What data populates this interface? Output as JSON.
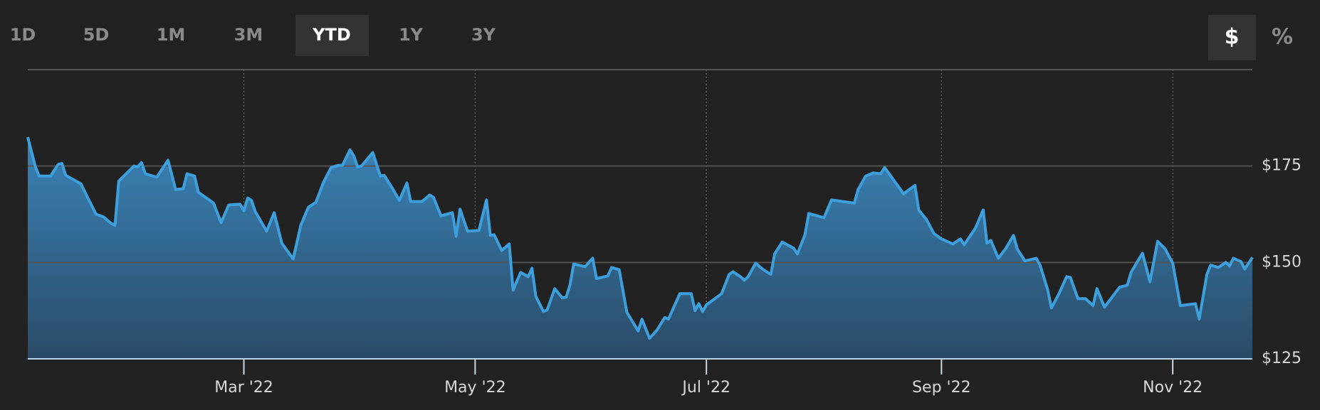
{
  "ranges": [
    "1D",
    "5D",
    "1M",
    "3M",
    "YTD",
    "1Y",
    "3Y"
  ],
  "selected_range_index": 4,
  "units": [
    "$",
    "%"
  ],
  "selected_unit_index": 0,
  "chart_data": {
    "type": "area",
    "color": "#3d9fdc",
    "grid": true,
    "xlim": [
      3,
      326
    ],
    "xticks": [
      {
        "value": 60,
        "label": "Mar '22"
      },
      {
        "value": 121,
        "label": "May '22"
      },
      {
        "value": 182,
        "label": "Jul '22"
      },
      {
        "value": 244,
        "label": "Sep '22"
      },
      {
        "value": 305,
        "label": "Nov '22"
      }
    ],
    "ylim": [
      125,
      200
    ],
    "yticks": [
      {
        "value": 125,
        "label": "$125"
      },
      {
        "value": 150,
        "label": "$150"
      },
      {
        "value": 175,
        "label": "$175"
      }
    ],
    "x": [
      3,
      5,
      6,
      9,
      11,
      12,
      13,
      17,
      19,
      21,
      23,
      25,
      26,
      27,
      31,
      32,
      33,
      34,
      37,
      40,
      42,
      44,
      45,
      47,
      48,
      52,
      54,
      56,
      59,
      60,
      61,
      62,
      63,
      66,
      68,
      70,
      73,
      75,
      77,
      79,
      81,
      83,
      85,
      86,
      88,
      89,
      90,
      91,
      94,
      96,
      97,
      99,
      101,
      103,
      104,
      107,
      109,
      110,
      112,
      115,
      116,
      117,
      119,
      122,
      124,
      125,
      126,
      128,
      130,
      131,
      133,
      135,
      136,
      137,
      139,
      140,
      142,
      144,
      145,
      146,
      147,
      150,
      152,
      153,
      156,
      157,
      159,
      161,
      164,
      165,
      167,
      169,
      171,
      172,
      175,
      178,
      179,
      180,
      181,
      182,
      186,
      188,
      189,
      191,
      192,
      193,
      195,
      197,
      199,
      200,
      202,
      205,
      206,
      208,
      209,
      213,
      215,
      221,
      222,
      224,
      226,
      228,
      229,
      231,
      234,
      237,
      238,
      240,
      242,
      244,
      247,
      249,
      250,
      253,
      255,
      256,
      257,
      259,
      261,
      263,
      264,
      266,
      269,
      270,
      272,
      273,
      275,
      277,
      278,
      280,
      282,
      284,
      285,
      287,
      291,
      293,
      294,
      297,
      299,
      301,
      303,
      305,
      307,
      311,
      312,
      314,
      315,
      317,
      319,
      320,
      321,
      323,
      324,
      326
    ],
    "values": [
      182.5,
      174.8,
      172.4,
      172.4,
      175.4,
      175.7,
      172.6,
      170.4,
      166.4,
      162.5,
      161.8,
      160.1,
      159.6,
      171.1,
      175,
      174.8,
      175.9,
      173,
      172.1,
      176.5,
      168.9,
      169.1,
      173,
      172.4,
      168.2,
      165.4,
      160.3,
      164.9,
      165.1,
      163.4,
      166.7,
      166.1,
      163.2,
      158.1,
      162.9,
      155,
      150.9,
      159.6,
      164.3,
      165.6,
      170.8,
      174.6,
      175.2,
      175.2,
      179.2,
      177.6,
      174.8,
      175,
      178.5,
      172.4,
      172.6,
      169.5,
      166.1,
      170.6,
      165.8,
      165.8,
      167.5,
      166.9,
      162.1,
      162.9,
      156.8,
      163.8,
      158.1,
      158.3,
      166.2,
      157,
      157.2,
      153.1,
      154.8,
      142.8,
      147.4,
      146.3,
      148.5,
      141.2,
      137.3,
      137.7,
      143.2,
      140.8,
      141,
      144.1,
      149.6,
      148.9,
      151.1,
      145.8,
      146.5,
      148.7,
      148.1,
      137.1,
      132.2,
      135.3,
      130.3,
      132.5,
      135.7,
      135.3,
      141.9,
      141.9,
      137.5,
      139.3,
      137.3,
      139,
      141.9,
      146.9,
      147.6,
      146.3,
      145.4,
      146.3,
      149.8,
      148.1,
      146.9,
      152.2,
      155.3,
      153.7,
      152.2,
      157.2,
      162.7,
      161.6,
      166.2,
      165.4,
      168.9,
      172.4,
      173.2,
      173,
      174.6,
      171.9,
      167.8,
      170,
      163.6,
      161.2,
      157.5,
      156.1,
      154.8,
      156.1,
      154.6,
      159,
      163.6,
      155,
      155.7,
      151.1,
      153.7,
      157,
      153.5,
      150.4,
      151.1,
      149.3,
      143,
      138.2,
      141.9,
      146.3,
      146.1,
      140.6,
      140.6,
      138.8,
      143.2,
      138.4,
      143.6,
      144.1,
      147.4,
      152.4,
      145,
      155.5,
      153.5,
      149.8,
      138.8,
      139.3,
      135.3,
      146.9,
      149.3,
      148.7,
      150,
      149.1,
      151.1,
      150.2,
      148.3,
      151.3
    ]
  }
}
